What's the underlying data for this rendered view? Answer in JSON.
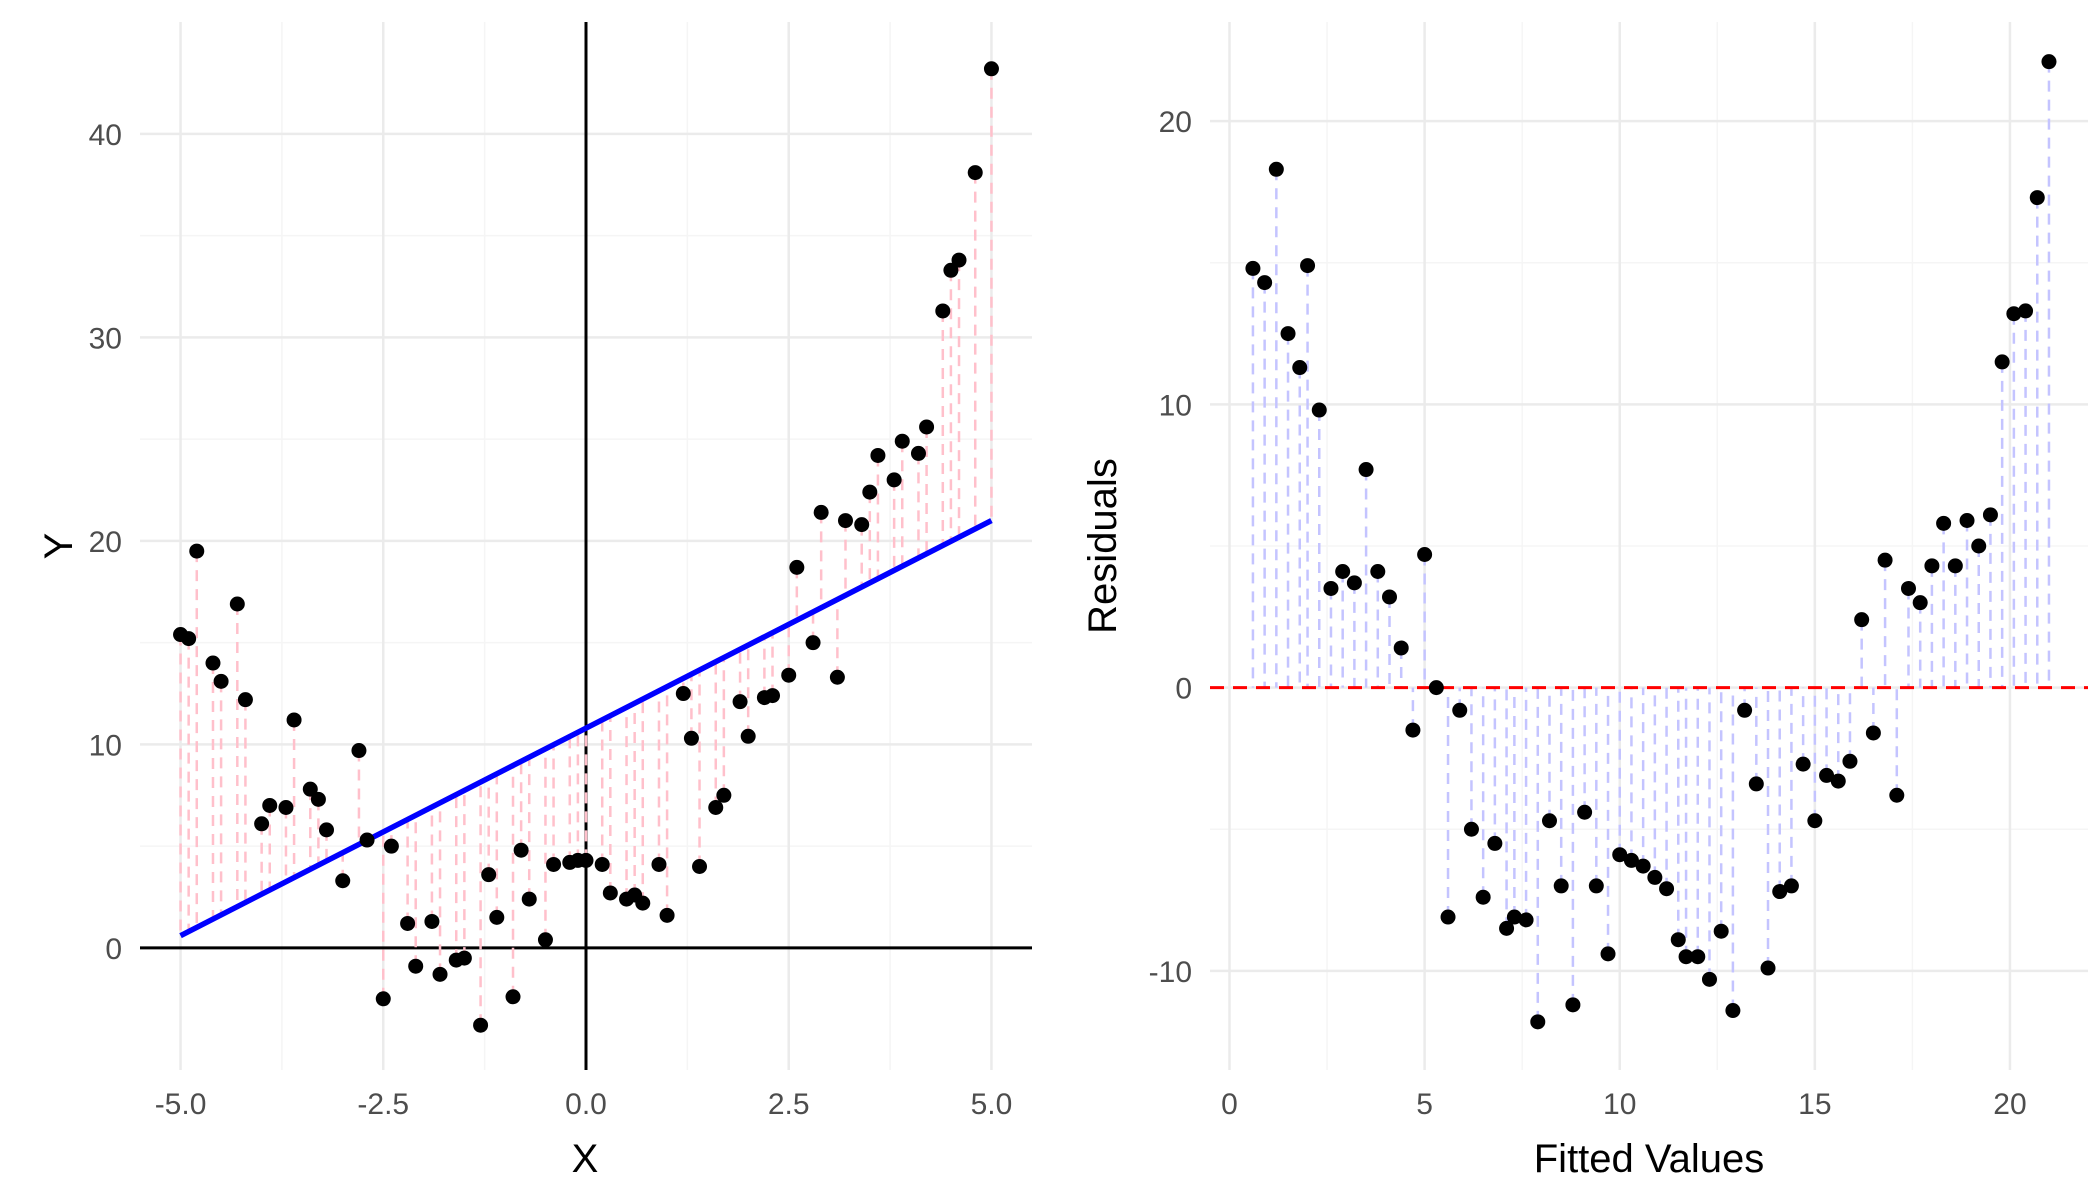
{
  "colors": {
    "panel_background": "#ffffff",
    "major_grid": "#ebebeb",
    "minor_grid": "#f5f5f5",
    "tick_text": "#4d4d4d",
    "point": "#000000",
    "fit_line": "#0000ff",
    "left_residual_segments": "#ffc0cb",
    "right_residual_segments": "#c4c4ff",
    "zero_reference": "#ff0000",
    "reference_axes": "#000000"
  },
  "chart_data": [
    {
      "type": "scatter",
      "panel": "left",
      "xlabel": "X",
      "ylabel": "Y",
      "xlim": [
        -5.5,
        5.5
      ],
      "ylim": [
        -6,
        45.5
      ],
      "x_ticks": [
        -5,
        -2.5,
        0,
        2.5,
        5
      ],
      "x_tick_labels": [
        "-5.0",
        "-2.5",
        "0.0",
        "2.5",
        "5.0"
      ],
      "y_ticks": [
        0,
        10,
        20,
        30,
        40
      ],
      "y_tick_labels": [
        "0",
        "10",
        "20",
        "30",
        "40"
      ],
      "grid": true,
      "reference_lines": {
        "x": 0,
        "y": 0
      },
      "fit_line": {
        "x": [
          -5,
          5
        ],
        "y": [
          0.6,
          21
        ]
      },
      "residual_segments": "dashed, from each point to the fitted line",
      "points": [
        {
          "x": -5.0,
          "y": 15.4
        },
        {
          "x": -4.9,
          "y": 15.2
        },
        {
          "x": -4.8,
          "y": 19.5
        },
        {
          "x": -4.6,
          "y": 14.0
        },
        {
          "x": -4.5,
          "y": 13.1
        },
        {
          "x": -4.3,
          "y": 16.9
        },
        {
          "x": -4.2,
          "y": 12.2
        },
        {
          "x": -4.0,
          "y": 6.1
        },
        {
          "x": -3.9,
          "y": 7.0
        },
        {
          "x": -3.7,
          "y": 6.9
        },
        {
          "x": -3.6,
          "y": 11.2
        },
        {
          "x": -3.4,
          "y": 7.8
        },
        {
          "x": -3.3,
          "y": 7.3
        },
        {
          "x": -3.2,
          "y": 5.8
        },
        {
          "x": -3.0,
          "y": 3.3
        },
        {
          "x": -2.8,
          "y": 9.7
        },
        {
          "x": -2.7,
          "y": 5.3
        },
        {
          "x": -2.5,
          "y": -2.5
        },
        {
          "x": -2.4,
          "y": 5.0
        },
        {
          "x": -2.2,
          "y": 1.2
        },
        {
          "x": -2.1,
          "y": -0.9
        },
        {
          "x": -1.9,
          "y": 1.3
        },
        {
          "x": -1.8,
          "y": -1.3
        },
        {
          "x": -1.6,
          "y": -0.6
        },
        {
          "x": -1.5,
          "y": -0.5
        },
        {
          "x": -1.3,
          "y": -3.8
        },
        {
          "x": -1.2,
          "y": 3.6
        },
        {
          "x": -1.1,
          "y": 1.5
        },
        {
          "x": -0.9,
          "y": -2.4
        },
        {
          "x": -0.8,
          "y": 4.8
        },
        {
          "x": -0.7,
          "y": 2.4
        },
        {
          "x": -0.5,
          "y": 0.4
        },
        {
          "x": -0.4,
          "y": 4.1
        },
        {
          "x": -0.2,
          "y": 4.2
        },
        {
          "x": -0.1,
          "y": 4.3
        },
        {
          "x": 0.0,
          "y": 4.3
        },
        {
          "x": 0.2,
          "y": 4.1
        },
        {
          "x": 0.3,
          "y": 2.7
        },
        {
          "x": 0.5,
          "y": 2.4
        },
        {
          "x": 0.6,
          "y": 2.6
        },
        {
          "x": 0.7,
          "y": 2.2
        },
        {
          "x": 0.9,
          "y": 4.1
        },
        {
          "x": 1.0,
          "y": 1.6
        },
        {
          "x": 1.2,
          "y": 12.5
        },
        {
          "x": 1.3,
          "y": 10.3
        },
        {
          "x": 1.4,
          "y": 4.0
        },
        {
          "x": 1.6,
          "y": 6.9
        },
        {
          "x": 1.7,
          "y": 7.5
        },
        {
          "x": 1.9,
          "y": 12.1
        },
        {
          "x": 2.0,
          "y": 10.4
        },
        {
          "x": 2.2,
          "y": 12.3
        },
        {
          "x": 2.3,
          "y": 12.4
        },
        {
          "x": 2.5,
          "y": 13.4
        },
        {
          "x": 2.6,
          "y": 18.7
        },
        {
          "x": 2.8,
          "y": 15.0
        },
        {
          "x": 2.9,
          "y": 21.4
        },
        {
          "x": 3.1,
          "y": 13.3
        },
        {
          "x": 3.2,
          "y": 21.0
        },
        {
          "x": 3.4,
          "y": 20.8
        },
        {
          "x": 3.5,
          "y": 22.4
        },
        {
          "x": 3.6,
          "y": 24.2
        },
        {
          "x": 3.8,
          "y": 23.0
        },
        {
          "x": 3.9,
          "y": 24.9
        },
        {
          "x": 4.1,
          "y": 24.3
        },
        {
          "x": 4.2,
          "y": 25.6
        },
        {
          "x": 4.4,
          "y": 31.3
        },
        {
          "x": 4.5,
          "y": 33.3
        },
        {
          "x": 4.6,
          "y": 33.8
        },
        {
          "x": 4.8,
          "y": 38.1
        },
        {
          "x": 5.0,
          "y": 43.2
        }
      ]
    },
    {
      "type": "scatter",
      "panel": "right",
      "xlabel": "Fitted Values",
      "ylabel": "Residuals",
      "xlim": [
        -0.5,
        22
      ],
      "ylim": [
        -13.5,
        23.5
      ],
      "x_ticks": [
        0,
        5,
        10,
        15,
        20
      ],
      "x_tick_labels": [
        "0",
        "5",
        "10",
        "15",
        "20"
      ],
      "y_ticks": [
        -10,
        0,
        10,
        20
      ],
      "y_tick_labels": [
        "-10",
        "0",
        "10",
        "20"
      ],
      "grid": true,
      "reference_line": {
        "y": 0,
        "style": "dashed"
      },
      "residual_segments": "dashed, from each point to zero",
      "points": [
        {
          "x": 0.6,
          "y": 14.8
        },
        {
          "x": 0.9,
          "y": 14.3
        },
        {
          "x": 1.2,
          "y": 18.3
        },
        {
          "x": 1.5,
          "y": 12.5
        },
        {
          "x": 1.8,
          "y": 11.3
        },
        {
          "x": 2.0,
          "y": 14.9
        },
        {
          "x": 2.3,
          "y": 9.8
        },
        {
          "x": 2.6,
          "y": 3.5
        },
        {
          "x": 2.9,
          "y": 4.1
        },
        {
          "x": 3.2,
          "y": 3.7
        },
        {
          "x": 3.5,
          "y": 7.7
        },
        {
          "x": 3.8,
          "y": 4.1
        },
        {
          "x": 4.1,
          "y": 3.2
        },
        {
          "x": 4.4,
          "y": 1.4
        },
        {
          "x": 4.7,
          "y": -1.5
        },
        {
          "x": 5.0,
          "y": 4.7
        },
        {
          "x": 5.3,
          "y": 0.0
        },
        {
          "x": 5.6,
          "y": -8.1
        },
        {
          "x": 5.9,
          "y": -0.8
        },
        {
          "x": 6.2,
          "y": -5.0
        },
        {
          "x": 6.5,
          "y": -7.4
        },
        {
          "x": 6.8,
          "y": -5.5
        },
        {
          "x": 7.1,
          "y": -8.5
        },
        {
          "x": 7.3,
          "y": -8.1
        },
        {
          "x": 7.6,
          "y": -8.2
        },
        {
          "x": 7.9,
          "y": -11.8
        },
        {
          "x": 8.2,
          "y": -4.7
        },
        {
          "x": 8.5,
          "y": -7.0
        },
        {
          "x": 8.8,
          "y": -11.2
        },
        {
          "x": 9.1,
          "y": -4.4
        },
        {
          "x": 9.4,
          "y": -7.0
        },
        {
          "x": 9.7,
          "y": -9.4
        },
        {
          "x": 10.0,
          "y": -5.9
        },
        {
          "x": 10.3,
          "y": -6.1
        },
        {
          "x": 10.6,
          "y": -6.3
        },
        {
          "x": 10.9,
          "y": -6.7
        },
        {
          "x": 11.2,
          "y": -7.1
        },
        {
          "x": 11.5,
          "y": -8.9
        },
        {
          "x": 11.7,
          "y": -9.5
        },
        {
          "x": 12.0,
          "y": -9.5
        },
        {
          "x": 12.3,
          "y": -10.3
        },
        {
          "x": 12.6,
          "y": -8.6
        },
        {
          "x": 12.9,
          "y": -11.4
        },
        {
          "x": 13.2,
          "y": -0.8
        },
        {
          "x": 13.5,
          "y": -3.4
        },
        {
          "x": 13.8,
          "y": -9.9
        },
        {
          "x": 14.1,
          "y": -7.2
        },
        {
          "x": 14.4,
          "y": -7.0
        },
        {
          "x": 14.7,
          "y": -2.7
        },
        {
          "x": 15.0,
          "y": -4.7
        },
        {
          "x": 15.3,
          "y": -3.1
        },
        {
          "x": 15.6,
          "y": -3.3
        },
        {
          "x": 15.9,
          "y": -2.6
        },
        {
          "x": 16.2,
          "y": 2.4
        },
        {
          "x": 16.5,
          "y": -1.6
        },
        {
          "x": 16.8,
          "y": 4.5
        },
        {
          "x": 17.1,
          "y": -3.8
        },
        {
          "x": 17.4,
          "y": 3.5
        },
        {
          "x": 17.7,
          "y": 3.0
        },
        {
          "x": 18.0,
          "y": 4.3
        },
        {
          "x": 18.3,
          "y": 5.8
        },
        {
          "x": 18.6,
          "y": 4.3
        },
        {
          "x": 18.9,
          "y": 5.9
        },
        {
          "x": 19.2,
          "y": 5.0
        },
        {
          "x": 19.5,
          "y": 6.1
        },
        {
          "x": 19.8,
          "y": 11.5
        },
        {
          "x": 20.1,
          "y": 13.2
        },
        {
          "x": 20.4,
          "y": 13.3
        },
        {
          "x": 20.7,
          "y": 17.3
        },
        {
          "x": 21.0,
          "y": 22.1
        }
      ]
    }
  ]
}
